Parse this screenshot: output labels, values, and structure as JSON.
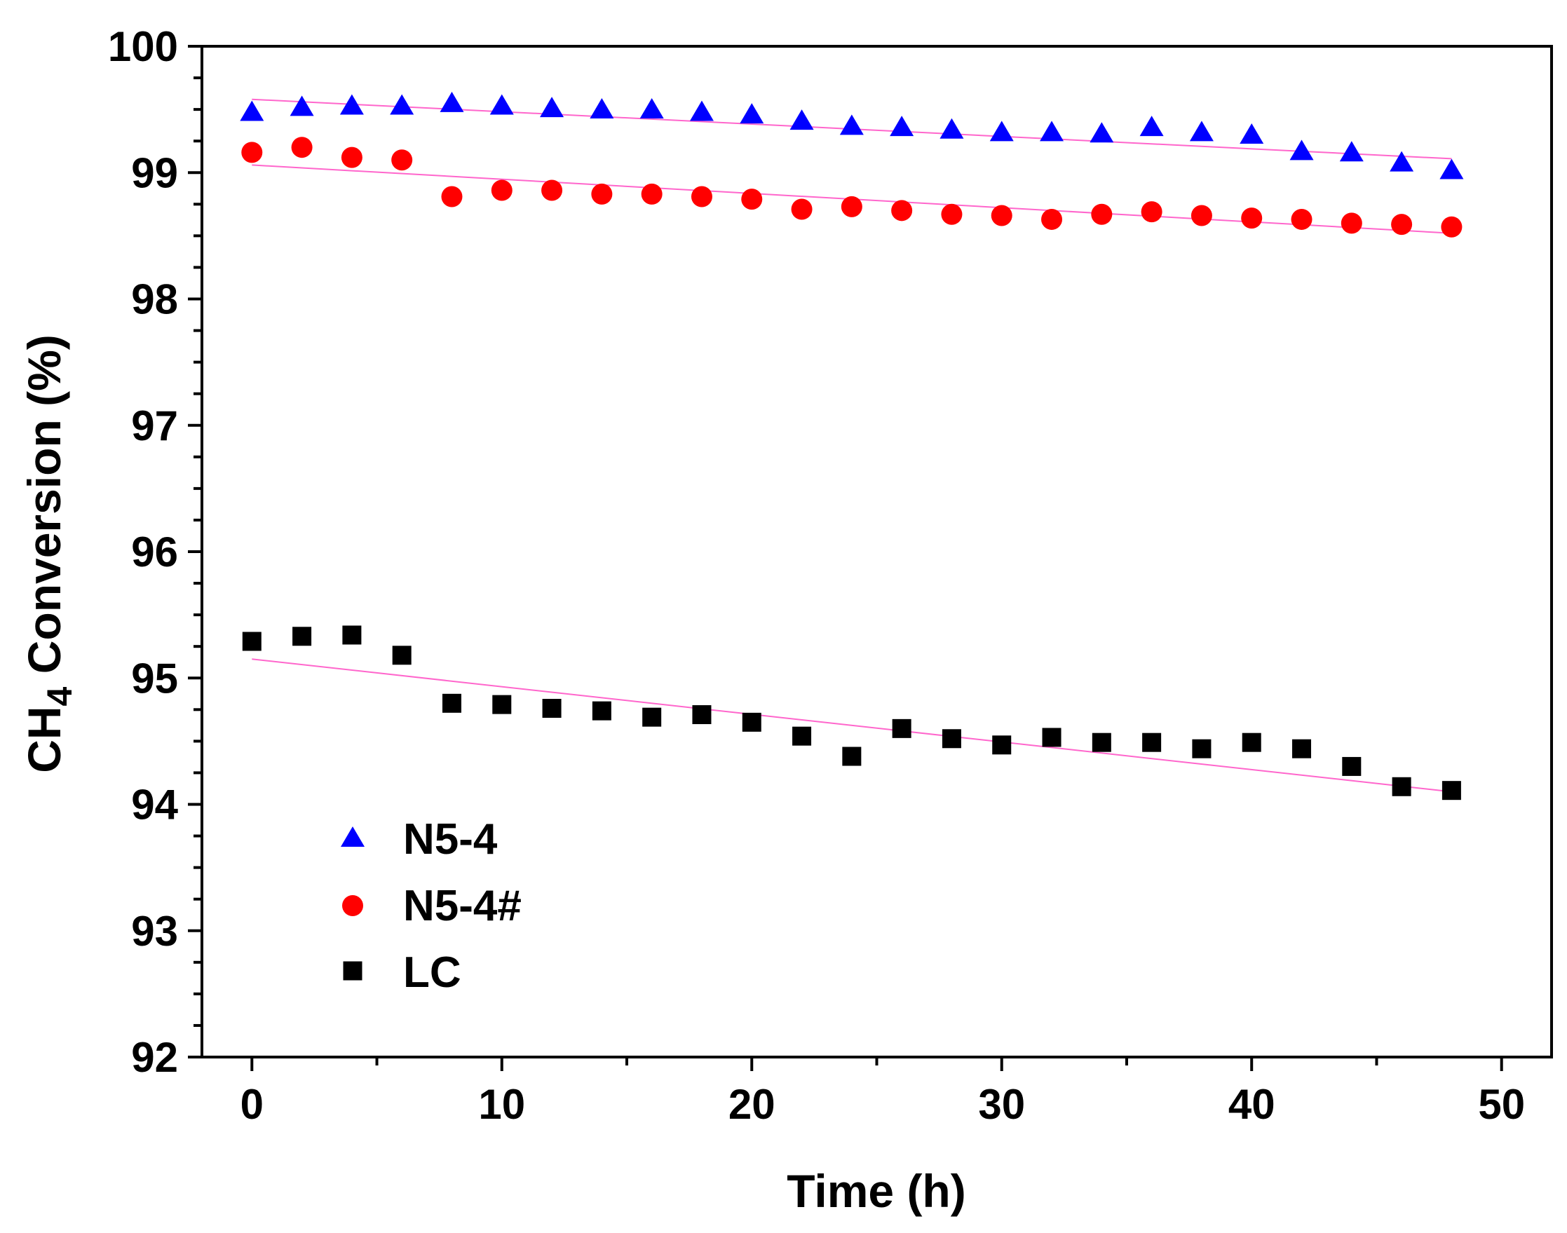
{
  "chart_data": {
    "type": "scatter",
    "title": "",
    "xlabel": "Time (h)",
    "ylabel": {
      "main": "CH",
      "subscript": "4",
      "rest": " Conversion (%)"
    },
    "xlim": [
      -2,
      52
    ],
    "ylim": [
      92,
      100
    ],
    "x_ticks": [
      0,
      10,
      20,
      30,
      40,
      50
    ],
    "x_tick_labels": [
      "0",
      "10",
      "20",
      "30",
      "40",
      "50"
    ],
    "y_ticks": [
      92,
      93,
      94,
      95,
      96,
      97,
      98,
      99,
      100
    ],
    "y_tick_labels": [
      "92",
      "93",
      "94",
      "95",
      "96",
      "97",
      "98",
      "99",
      "100"
    ],
    "grid": false,
    "legend_position": "bottom-left",
    "x": [
      0,
      2,
      4,
      6,
      8,
      10,
      12,
      14,
      16,
      18,
      20,
      22,
      24,
      26,
      28,
      30,
      32,
      34,
      36,
      38,
      40,
      42,
      44,
      46,
      48
    ],
    "series": [
      {
        "name": "N5-4",
        "marker": "triangle",
        "color": "#0000ff",
        "values": [
          99.47,
          99.51,
          99.52,
          99.52,
          99.54,
          99.52,
          99.5,
          99.49,
          99.49,
          99.47,
          99.45,
          99.4,
          99.36,
          99.35,
          99.33,
          99.31,
          99.31,
          99.3,
          99.35,
          99.31,
          99.29,
          99.16,
          99.15,
          99.07,
          99.01
        ],
        "trend": [
          99.58,
          99.11
        ]
      },
      {
        "name": "N5-4#",
        "marker": "circle",
        "color": "#ff0000",
        "values": [
          99.16,
          99.2,
          99.12,
          99.1,
          98.81,
          98.86,
          98.86,
          98.83,
          98.83,
          98.81,
          98.79,
          98.71,
          98.73,
          98.7,
          98.67,
          98.66,
          98.63,
          98.67,
          98.69,
          98.66,
          98.64,
          98.63,
          98.6,
          98.59,
          98.57
        ],
        "trend": [
          99.06,
          98.52
        ]
      },
      {
        "name": "LC",
        "marker": "square",
        "color": "#000000",
        "values": [
          95.29,
          95.33,
          95.34,
          95.18,
          94.8,
          94.79,
          94.76,
          94.74,
          94.69,
          94.71,
          94.65,
          94.54,
          94.38,
          94.6,
          94.52,
          94.47,
          94.53,
          94.49,
          94.49,
          94.44,
          94.49,
          94.44,
          94.3,
          94.14,
          94.11
        ],
        "trend": [
          95.15,
          94.1
        ]
      }
    ],
    "trend_color": "#ff66cc"
  }
}
